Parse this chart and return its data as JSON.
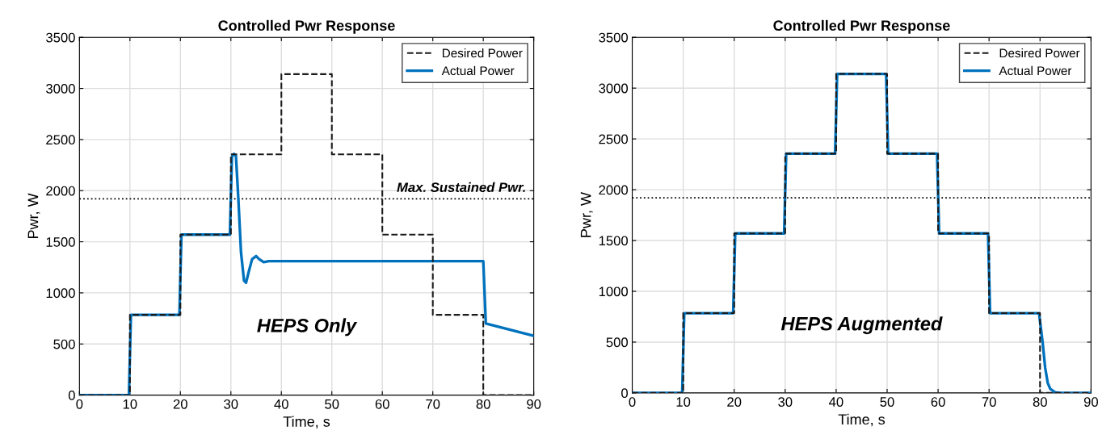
{
  "chart_data": [
    {
      "type": "line",
      "title": "Controlled Pwr Response",
      "xlabel": "Time, s",
      "ylabel": "Pwr, W",
      "xlim": [
        0,
        90
      ],
      "xticks": [
        0,
        10,
        20,
        30,
        40,
        50,
        60,
        70,
        80,
        90
      ],
      "ylim": [
        0,
        3500
      ],
      "yticks": [
        0,
        500,
        1000,
        1500,
        2000,
        2500,
        3000,
        3500
      ],
      "grid": true,
      "legend": "top right",
      "marker": "none",
      "series": [
        {
          "name": "Desired Power",
          "color": "#1a1a1a",
          "line_style": "dashed",
          "x": [
            0,
            10,
            10,
            20,
            20,
            30,
            30,
            40,
            40,
            50,
            50,
            60,
            60,
            70,
            70,
            80,
            80,
            90
          ],
          "values": [
            0,
            0,
            785,
            785,
            1570,
            1570,
            2355,
            2355,
            3140,
            3140,
            2355,
            2355,
            1570,
            1570,
            785,
            785,
            0,
            0
          ]
        },
        {
          "name": "Actual Power",
          "color": "#0072bd",
          "line_style": "solid",
          "x": [
            0,
            9.8,
            10.2,
            19.8,
            20.2,
            29.8,
            30.2,
            30.6,
            31,
            31.5,
            32,
            32.6,
            33,
            33.5,
            34.2,
            35,
            35.6,
            36.5,
            37.5,
            40,
            80,
            80.5,
            90
          ],
          "values": [
            0,
            0,
            785,
            785,
            1570,
            1570,
            2330,
            2360,
            2340,
            1900,
            1400,
            1120,
            1100,
            1200,
            1330,
            1360,
            1330,
            1300,
            1310,
            1310,
            1310,
            700,
            580
          ]
        }
      ],
      "ref_lines": [
        {
          "axis": "y",
          "value": 1920,
          "label": "Max. Sustained Pwr.",
          "color": "#000000",
          "line_style": "dotted"
        }
      ],
      "annotations": [
        "HEPS Only"
      ]
    },
    {
      "type": "line",
      "title": "Controlled Pwr Response",
      "xlabel": "Time, s",
      "ylabel": "Pwr, W",
      "xlim": [
        0,
        90
      ],
      "xticks": [
        0,
        10,
        20,
        30,
        40,
        50,
        60,
        70,
        80,
        90
      ],
      "ylim": [
        0,
        3500
      ],
      "yticks": [
        0,
        500,
        1000,
        1500,
        2000,
        2500,
        3000,
        3500
      ],
      "grid": true,
      "legend": "top right",
      "marker": "none",
      "series": [
        {
          "name": "Desired Power",
          "color": "#1a1a1a",
          "line_style": "dashed",
          "x": [
            0,
            10,
            10,
            20,
            20,
            30,
            30,
            40,
            40,
            50,
            50,
            60,
            60,
            70,
            70,
            80,
            80,
            90
          ],
          "values": [
            0,
            0,
            785,
            785,
            1570,
            1570,
            2355,
            2355,
            3140,
            3140,
            2355,
            2355,
            1570,
            1570,
            785,
            785,
            0,
            0
          ]
        },
        {
          "name": "Actual Power",
          "color": "#0072bd",
          "line_style": "solid",
          "x": [
            0,
            9.8,
            10.2,
            19.8,
            20.2,
            29.8,
            30.2,
            39.8,
            40.2,
            49.8,
            50.2,
            59.8,
            60.2,
            69.8,
            70.2,
            79.8,
            80.5,
            81,
            81.5,
            82,
            83,
            84,
            90
          ],
          "values": [
            0,
            0,
            785,
            785,
            1570,
            1570,
            2355,
            2355,
            3140,
            3140,
            2355,
            2355,
            1570,
            1570,
            785,
            785,
            500,
            250,
            100,
            40,
            5,
            0,
            0
          ]
        }
      ],
      "ref_lines": [
        {
          "axis": "y",
          "value": 1920,
          "color": "#000000",
          "line_style": "dotted"
        }
      ],
      "annotations": [
        "HEPS Augmented"
      ]
    }
  ]
}
